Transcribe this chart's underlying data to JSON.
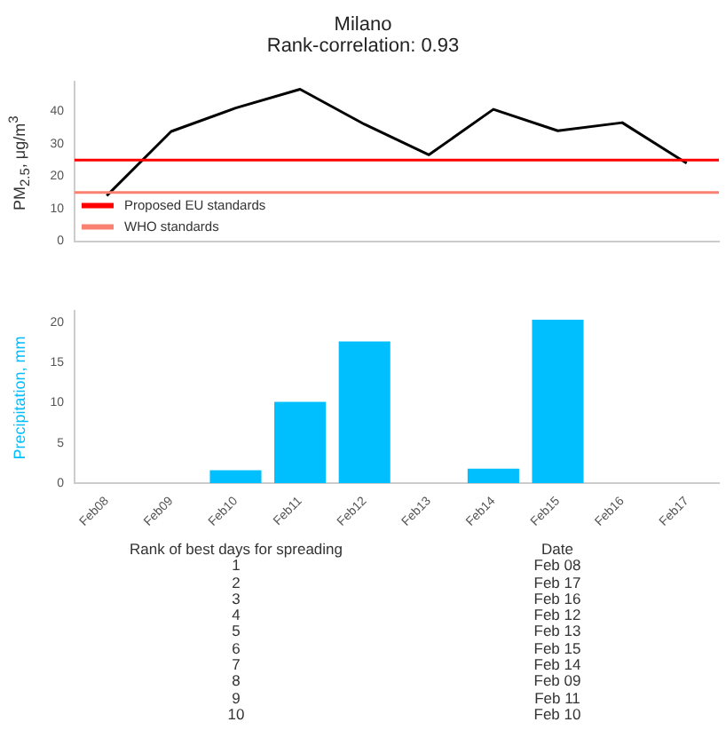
{
  "chart_data": [
    {
      "type": "line",
      "title": "Milano",
      "subtitle": "Rank-correlation: 0.93",
      "ylabel": "PM$_{2.5}$, μg/m$^{3}$",
      "categories": [
        null,
        null,
        null,
        null,
        null,
        null,
        null,
        null,
        null,
        null
      ],
      "series": [
        {
          "color": "#000000",
          "values": [
            14,
            33.8,
            41,
            46.8,
            36,
            26.6,
            40.6,
            34,
            36.5,
            24
          ]
        }
      ],
      "ylim": [
        0,
        49
      ],
      "yticks": [
        0,
        10,
        20,
        30,
        40
      ],
      "tick_labels": "y",
      "legend": "bottom left",
      "marker": "none",
      "ref_lines": [
        {
          "axis": "y",
          "value": 25,
          "label": "Proposed EU standards",
          "color": "#ff0000"
        },
        {
          "axis": "y",
          "value": 15,
          "label": "WHO standards",
          "color": "#fa8072"
        }
      ]
    },
    {
      "type": "bar",
      "ylabel": "Precipitation, mm",
      "categories": [
        "Feb08",
        "Feb09",
        "Feb10",
        "Feb11",
        "Feb12",
        "Feb13",
        "Feb14",
        "Feb15",
        "Feb16",
        "Feb17"
      ],
      "series": [
        {
          "color": "#00bfff",
          "values": [
            0,
            0,
            1.6,
            10.1,
            17.6,
            0,
            1.8,
            20.3,
            0,
            0
          ]
        }
      ],
      "ylim": [
        0,
        21.4
      ],
      "yticks": [
        0,
        5,
        10,
        15,
        20
      ],
      "annotations": [
        "Rank of best days for spreading",
        "Date",
        "1",
        "Feb 08",
        "2",
        "Feb 17",
        "3",
        "Feb 16",
        "4",
        "Feb 12",
        "5",
        "Feb 13",
        "6",
        "Feb 15",
        "7",
        "Feb 14",
        "8",
        "Feb 09",
        "9",
        "Feb 11",
        "10",
        "Feb 10"
      ]
    }
  ]
}
